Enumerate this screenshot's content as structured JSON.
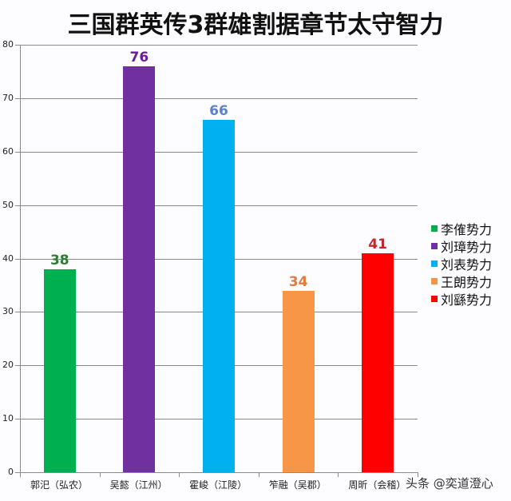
{
  "title": "三国群英传3群雄割据章节太守智力",
  "chart_data": {
    "type": "bar",
    "title": "三国群英传3群雄割据章节太守智力",
    "categories": [
      "郭汜（弘农）",
      "吴懿（江州）",
      "霍峻（江陵）",
      "笮融（吴郡）",
      "周昕（会稽）"
    ],
    "values": [
      38,
      76,
      66,
      34,
      41
    ],
    "colors": [
      "#00b050",
      "#7030a0",
      "#00b0f0",
      "#f79646",
      "#ff0000"
    ],
    "label_colors": [
      "#2e7d32",
      "#6a1b9a",
      "#5b7fd1",
      "#e07b39",
      "#c0282d"
    ],
    "series": [
      {
        "name": "李傕势力",
        "values": [
          38,
          null,
          null,
          null,
          null
        ]
      },
      {
        "name": "刘璋势力",
        "values": [
          null,
          76,
          null,
          null,
          null
        ]
      },
      {
        "name": "刘表势力",
        "values": [
          null,
          null,
          66,
          null,
          null
        ]
      },
      {
        "name": "王朗势力",
        "values": [
          null,
          null,
          null,
          34,
          null
        ]
      },
      {
        "name": "刘繇势力",
        "values": [
          null,
          null,
          null,
          null,
          41
        ]
      }
    ],
    "xlabel": "",
    "ylabel": "",
    "ylim": [
      0,
      80
    ],
    "yticks": [
      "0",
      "10",
      "20",
      "30",
      "40",
      "50",
      "60",
      "70",
      "80"
    ],
    "grid": true,
    "legend_position": "right"
  },
  "legend": [
    "李傕势力",
    "刘璋势力",
    "刘表势力",
    "王朗势力",
    "刘繇势力"
  ],
  "watermark": "头条 @奕道澄心"
}
